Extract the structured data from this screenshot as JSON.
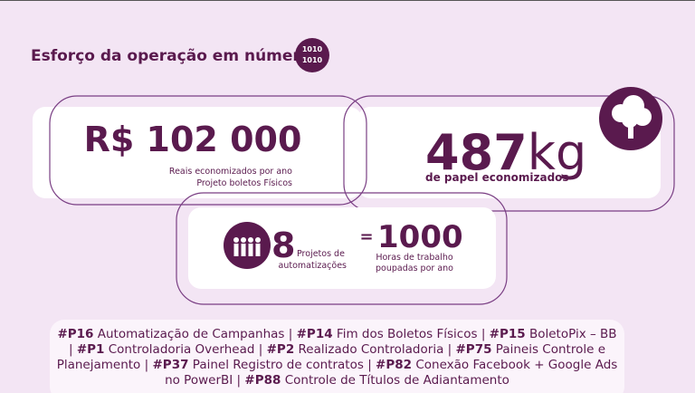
{
  "header": {
    "title": "Esforço da operação em números",
    "icon_lines": [
      "1010",
      "1010"
    ]
  },
  "card_savings": {
    "value": "R$ 102 000",
    "caption": [
      "Reais economizados por ano",
      "Projeto boletos Físicos"
    ]
  },
  "card_paper": {
    "value": "487",
    "unit": "kg",
    "caption": "de papel economizados"
  },
  "card_projects": {
    "count": "8",
    "count_caption": [
      "Projetos de",
      "automatizações"
    ],
    "equals": "=",
    "hours": "1000",
    "hours_caption": [
      "Horas de trabalho",
      "poupadas por ano"
    ]
  },
  "projects": {
    "separator": "|",
    "items": [
      {
        "code": "#P16",
        "text": "Automatização de Campanhas"
      },
      {
        "code": "#P14",
        "text": "Fim dos Boletos Físicos"
      },
      {
        "code": "#P15",
        "text": "BoletoPix – BB"
      },
      {
        "code": "#P1",
        "text": "Controladoria Overhead"
      },
      {
        "code": "#P2",
        "text": "Realizado Controladoria"
      },
      {
        "code": "#P75",
        "text": "Paineis Controle e Planejamento"
      },
      {
        "code": "#P37",
        "text": "Painel Registro de contratos"
      },
      {
        "code": "#P82",
        "text": "Conexão Facebook + Google Ads no PowerBI"
      },
      {
        "code": "#P88",
        "text": "Controle de Títulos de Adiantamento"
      }
    ]
  }
}
